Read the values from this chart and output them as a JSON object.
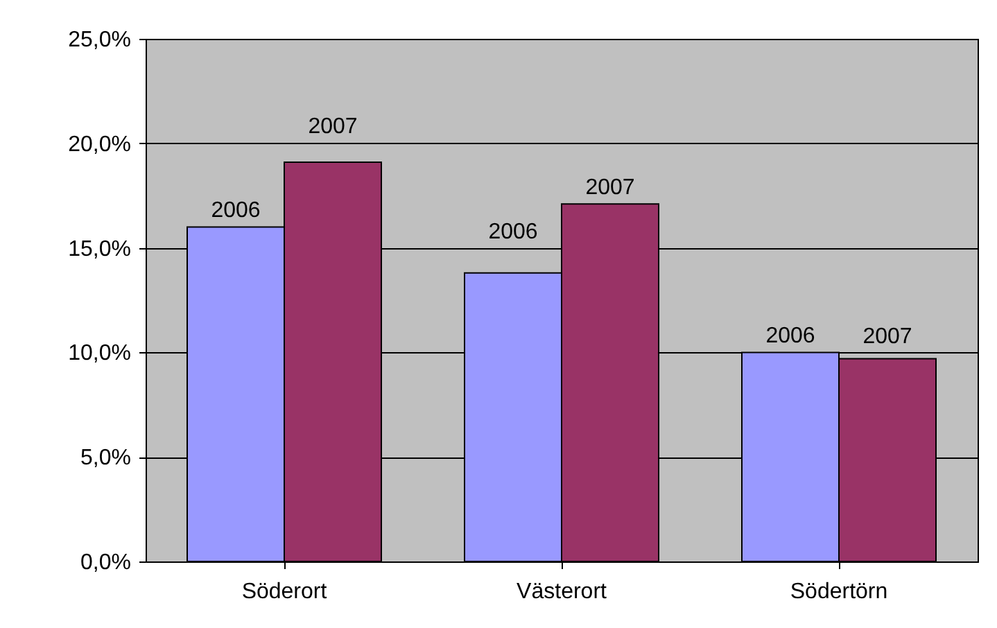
{
  "chart_data": {
    "type": "bar",
    "categories": [
      "Söderort",
      "Västerort",
      "Södertörn"
    ],
    "series": [
      {
        "name": "2006",
        "color": "#9999ff",
        "values": [
          16.0,
          13.8,
          10.0
        ]
      },
      {
        "name": "2007",
        "color": "#993366",
        "values": [
          19.1,
          17.1,
          9.7
        ]
      }
    ],
    "ylim": [
      0,
      25
    ],
    "yticks": [
      {
        "value": 0,
        "label": "0,0%"
      },
      {
        "value": 5,
        "label": "5,0%"
      },
      {
        "value": 10,
        "label": "10,0%"
      },
      {
        "value": 15,
        "label": "15,0%"
      },
      {
        "value": 20,
        "label": "20,0%"
      },
      {
        "value": 25,
        "label": "25,0%"
      }
    ],
    "grid": "y",
    "legend": false
  }
}
